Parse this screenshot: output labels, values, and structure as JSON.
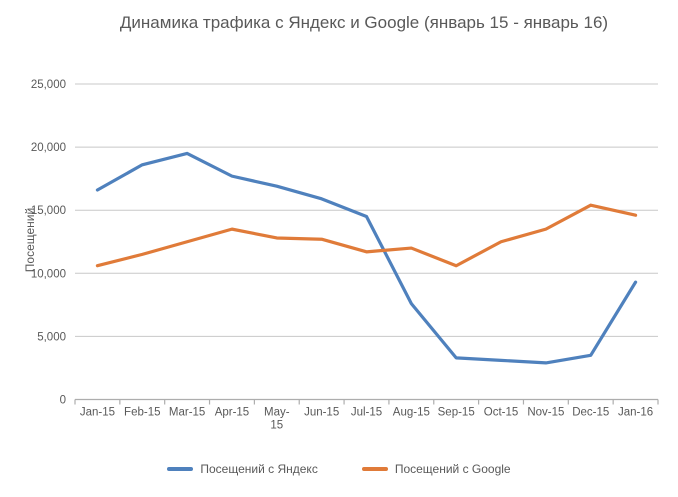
{
  "chart_data": {
    "type": "line",
    "title": "Динамика трафика с Яндекс и Google (январь 15 - январь 16)",
    "xlabel": "",
    "ylabel": "Посещений",
    "ylim": [
      0,
      25000
    ],
    "grid": "horizontal",
    "legend_position": "bottom",
    "categories": [
      "Jan-15",
      "Feb-15",
      "Mar-15",
      "Apr-15",
      "May-15",
      "Jun-15",
      "Jul-15",
      "Aug-15",
      "Sep-15",
      "Oct-15",
      "Nov-15",
      "Dec-15",
      "Jan-16"
    ],
    "x_tick_display": [
      [
        "Jan-15"
      ],
      [
        "Feb-15"
      ],
      [
        "Mar-15"
      ],
      [
        "Apr-15"
      ],
      [
        "May-",
        "15"
      ],
      [
        "Jun-15"
      ],
      [
        "Jul-15"
      ],
      [
        "Aug-15"
      ],
      [
        "Sep-15"
      ],
      [
        "Oct-15"
      ],
      [
        "Nov-15"
      ],
      [
        "Dec-15"
      ],
      [
        "Jan-16"
      ]
    ],
    "y_ticks": {
      "values": [
        0,
        5000,
        10000,
        15000,
        20000,
        25000
      ],
      "labels": [
        "0",
        "5,000",
        "10,000",
        "15,000",
        "20,000",
        "25,000"
      ]
    },
    "series": [
      {
        "name": "Посещений с Яндекс",
        "color": "#4f81bd",
        "values": [
          16600,
          18600,
          19500,
          17700,
          16900,
          15900,
          14500,
          7600,
          3300,
          3100,
          2900,
          3500,
          9300
        ]
      },
      {
        "name": "Посещений с Google",
        "color": "#e07b39",
        "values": [
          10600,
          11500,
          12500,
          13500,
          12800,
          12700,
          11700,
          12000,
          10600,
          12500,
          13500,
          15400,
          14600
        ]
      }
    ]
  },
  "colors": {
    "text": "#595959",
    "gridline": "#c8c8c8",
    "axis": "#adadad"
  }
}
